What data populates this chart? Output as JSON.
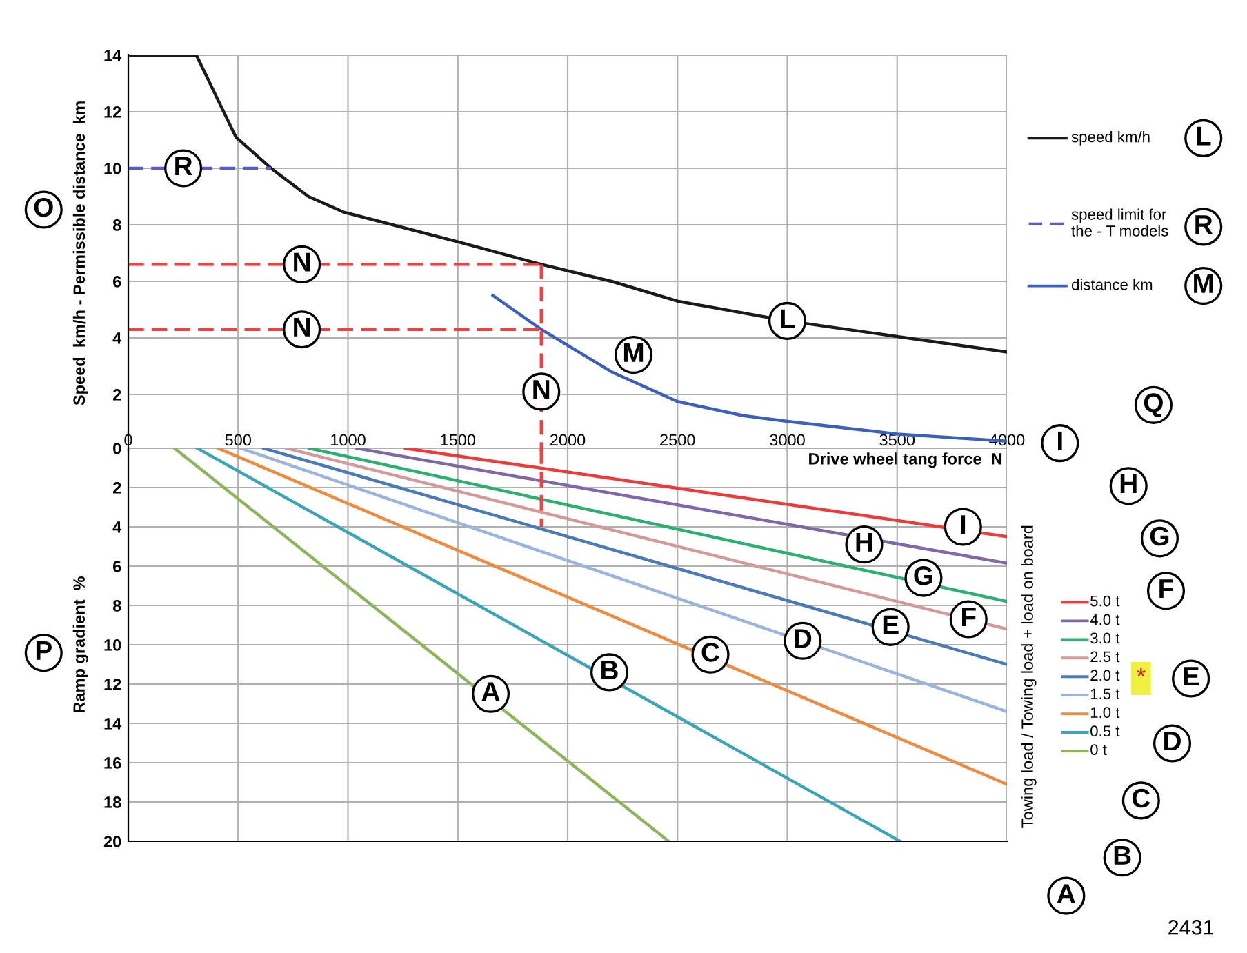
{
  "chart_data": [
    {
      "type": "line",
      "ylabel": "Speed  km/h - Permissible distance  km",
      "xlabel": "Drive wheel tang force  N",
      "xlim": [
        0,
        4000
      ],
      "xticks": [
        0,
        500,
        1000,
        1500,
        2000,
        2500,
        3000,
        3500,
        4000
      ],
      "ylim": [
        0,
        14
      ],
      "yticks": [
        2,
        4,
        6,
        8,
        10,
        12,
        14
      ],
      "grid": true,
      "legend": "right",
      "series": [
        {
          "name": "speed km/h",
          "color": "#1a1a1a",
          "line_style": "solid",
          "x": [
            0,
            310,
            490,
            650,
            820,
            980,
            1500,
            1880,
            2200,
            2500,
            3000,
            3500,
            4000
          ],
          "values": [
            14,
            14,
            11.1,
            10,
            9,
            8.45,
            7.4,
            6.6,
            6.0,
            5.3,
            4.6,
            4.05,
            3.5
          ]
        },
        {
          "name": "speed limit for\nthe - T models",
          "color": "#5a5ac8",
          "line_style": "dashed",
          "x": [
            0,
            650
          ],
          "values": [
            10,
            10
          ]
        },
        {
          "name": "distance km",
          "color": "#3a5fc0",
          "line_style": "solid",
          "x": [
            1660,
            1880,
            2200,
            2500,
            2800,
            3000,
            3500,
            4000
          ],
          "values": [
            5.5,
            4.3,
            2.8,
            1.75,
            1.25,
            1.05,
            0.6,
            0.35
          ]
        },
        {
          "color": "#ff3b3b",
          "line_style": "dashed",
          "x": [
            0,
            1880
          ],
          "values": [
            6.6,
            6.6
          ]
        },
        {
          "color": "#ff3b3b",
          "line_style": "dashed",
          "x": [
            0,
            1880
          ],
          "values": [
            4.3,
            4.3
          ]
        },
        {
          "color": "#ff3b3b",
          "line_style": "dashed",
          "x": [
            1880,
            1880
          ],
          "values": [
            6.6,
            0
          ]
        }
      ],
      "annotations": [
        {
          "text": "R",
          "x": 250,
          "y": 10
        },
        {
          "text": "N",
          "x": 790,
          "y": 6.6
        },
        {
          "text": "N",
          "x": 790,
          "y": 4.3
        },
        {
          "text": "N",
          "x": 1880,
          "y": 2.1
        },
        {
          "text": "M",
          "x": 2300,
          "y": 3.4
        },
        {
          "text": "L",
          "x": 3000,
          "y": 4.6
        },
        "O",
        "Q",
        "L",
        "R",
        "M"
      ]
    },
    {
      "type": "line",
      "ylabel": "Ramp gradient  %",
      "legend_title": "Towing load / Towing load + load on board",
      "xlim": [
        0,
        4000
      ],
      "xticks": [
        0,
        500,
        1000,
        1500,
        2000,
        2500,
        3000,
        3500,
        4000
      ],
      "ylim": [
        20,
        0
      ],
      "yticks": [
        0,
        2,
        4,
        6,
        8,
        10,
        12,
        14,
        16,
        18,
        20
      ],
      "grid": true,
      "legend": "right",
      "tick_labels": "y",
      "series": [
        {
          "name": "0 t",
          "color": "#8db55a",
          "line_style": "solid",
          "x": [
            210,
            2460
          ],
          "values": [
            0,
            20
          ]
        },
        {
          "name": "0.5 t",
          "color": "#3aa5b8",
          "line_style": "solid",
          "x": [
            314,
            3514
          ],
          "values": [
            0,
            20
          ]
        },
        {
          "name": "1.0 t",
          "color": "#f08a3c",
          "line_style": "solid",
          "x": [
            409,
            4000
          ],
          "values": [
            0,
            17.1
          ]
        },
        {
          "name": "1.5 t",
          "color": "#9ab4dc",
          "line_style": "solid",
          "x": [
            513,
            4000
          ],
          "values": [
            0,
            13.4
          ]
        },
        {
          "name": "2.0 t",
          "color": "#4a7ab8",
          "line_style": "solid",
          "x": [
            616,
            4000
          ],
          "values": [
            0,
            11.0
          ]
        },
        {
          "name": "2.5 t",
          "color": "#d49a9a",
          "line_style": "solid",
          "x": [
            720,
            4000
          ],
          "values": [
            0,
            9.2
          ]
        },
        {
          "name": "3.0 t",
          "color": "#2ab070",
          "line_style": "solid",
          "x": [
            824,
            4000
          ],
          "values": [
            0,
            7.8
          ]
        },
        {
          "name": "4.0 t",
          "color": "#8068a8",
          "line_style": "solid",
          "x": [
            1040,
            4000
          ],
          "values": [
            0,
            5.85
          ]
        },
        {
          "name": "5.0 t",
          "color": "#f03a3a",
          "line_style": "solid",
          "x": [
            1262,
            4000
          ],
          "values": [
            0,
            4.5
          ]
        },
        {
          "color": "#ff3b3b",
          "line_style": "dashed",
          "x": [
            1880,
            1880
          ],
          "values": [
            0,
            4
          ]
        }
      ],
      "annotations": [
        {
          "text": "A",
          "x": 1650,
          "y": 12.5
        },
        {
          "text": "B",
          "x": 2190,
          "y": 11.4
        },
        {
          "text": "C",
          "x": 2650,
          "y": 10.5
        },
        {
          "text": "D",
          "x": 3070,
          "y": 9.8
        },
        {
          "text": "E",
          "x": 3470,
          "y": 9.1
        },
        {
          "text": "F",
          "x": 3825,
          "y": 8.7
        },
        {
          "text": "G",
          "x": 3620,
          "y": 6.6
        },
        {
          "text": "H",
          "x": 3350,
          "y": 4.9
        },
        {
          "text": "I",
          "x": 3800,
          "y": 4.0
        },
        "P",
        "I",
        "H",
        "G",
        "F",
        "*",
        "E",
        "D",
        "C",
        "B",
        "A",
        "2431"
      ]
    }
  ]
}
